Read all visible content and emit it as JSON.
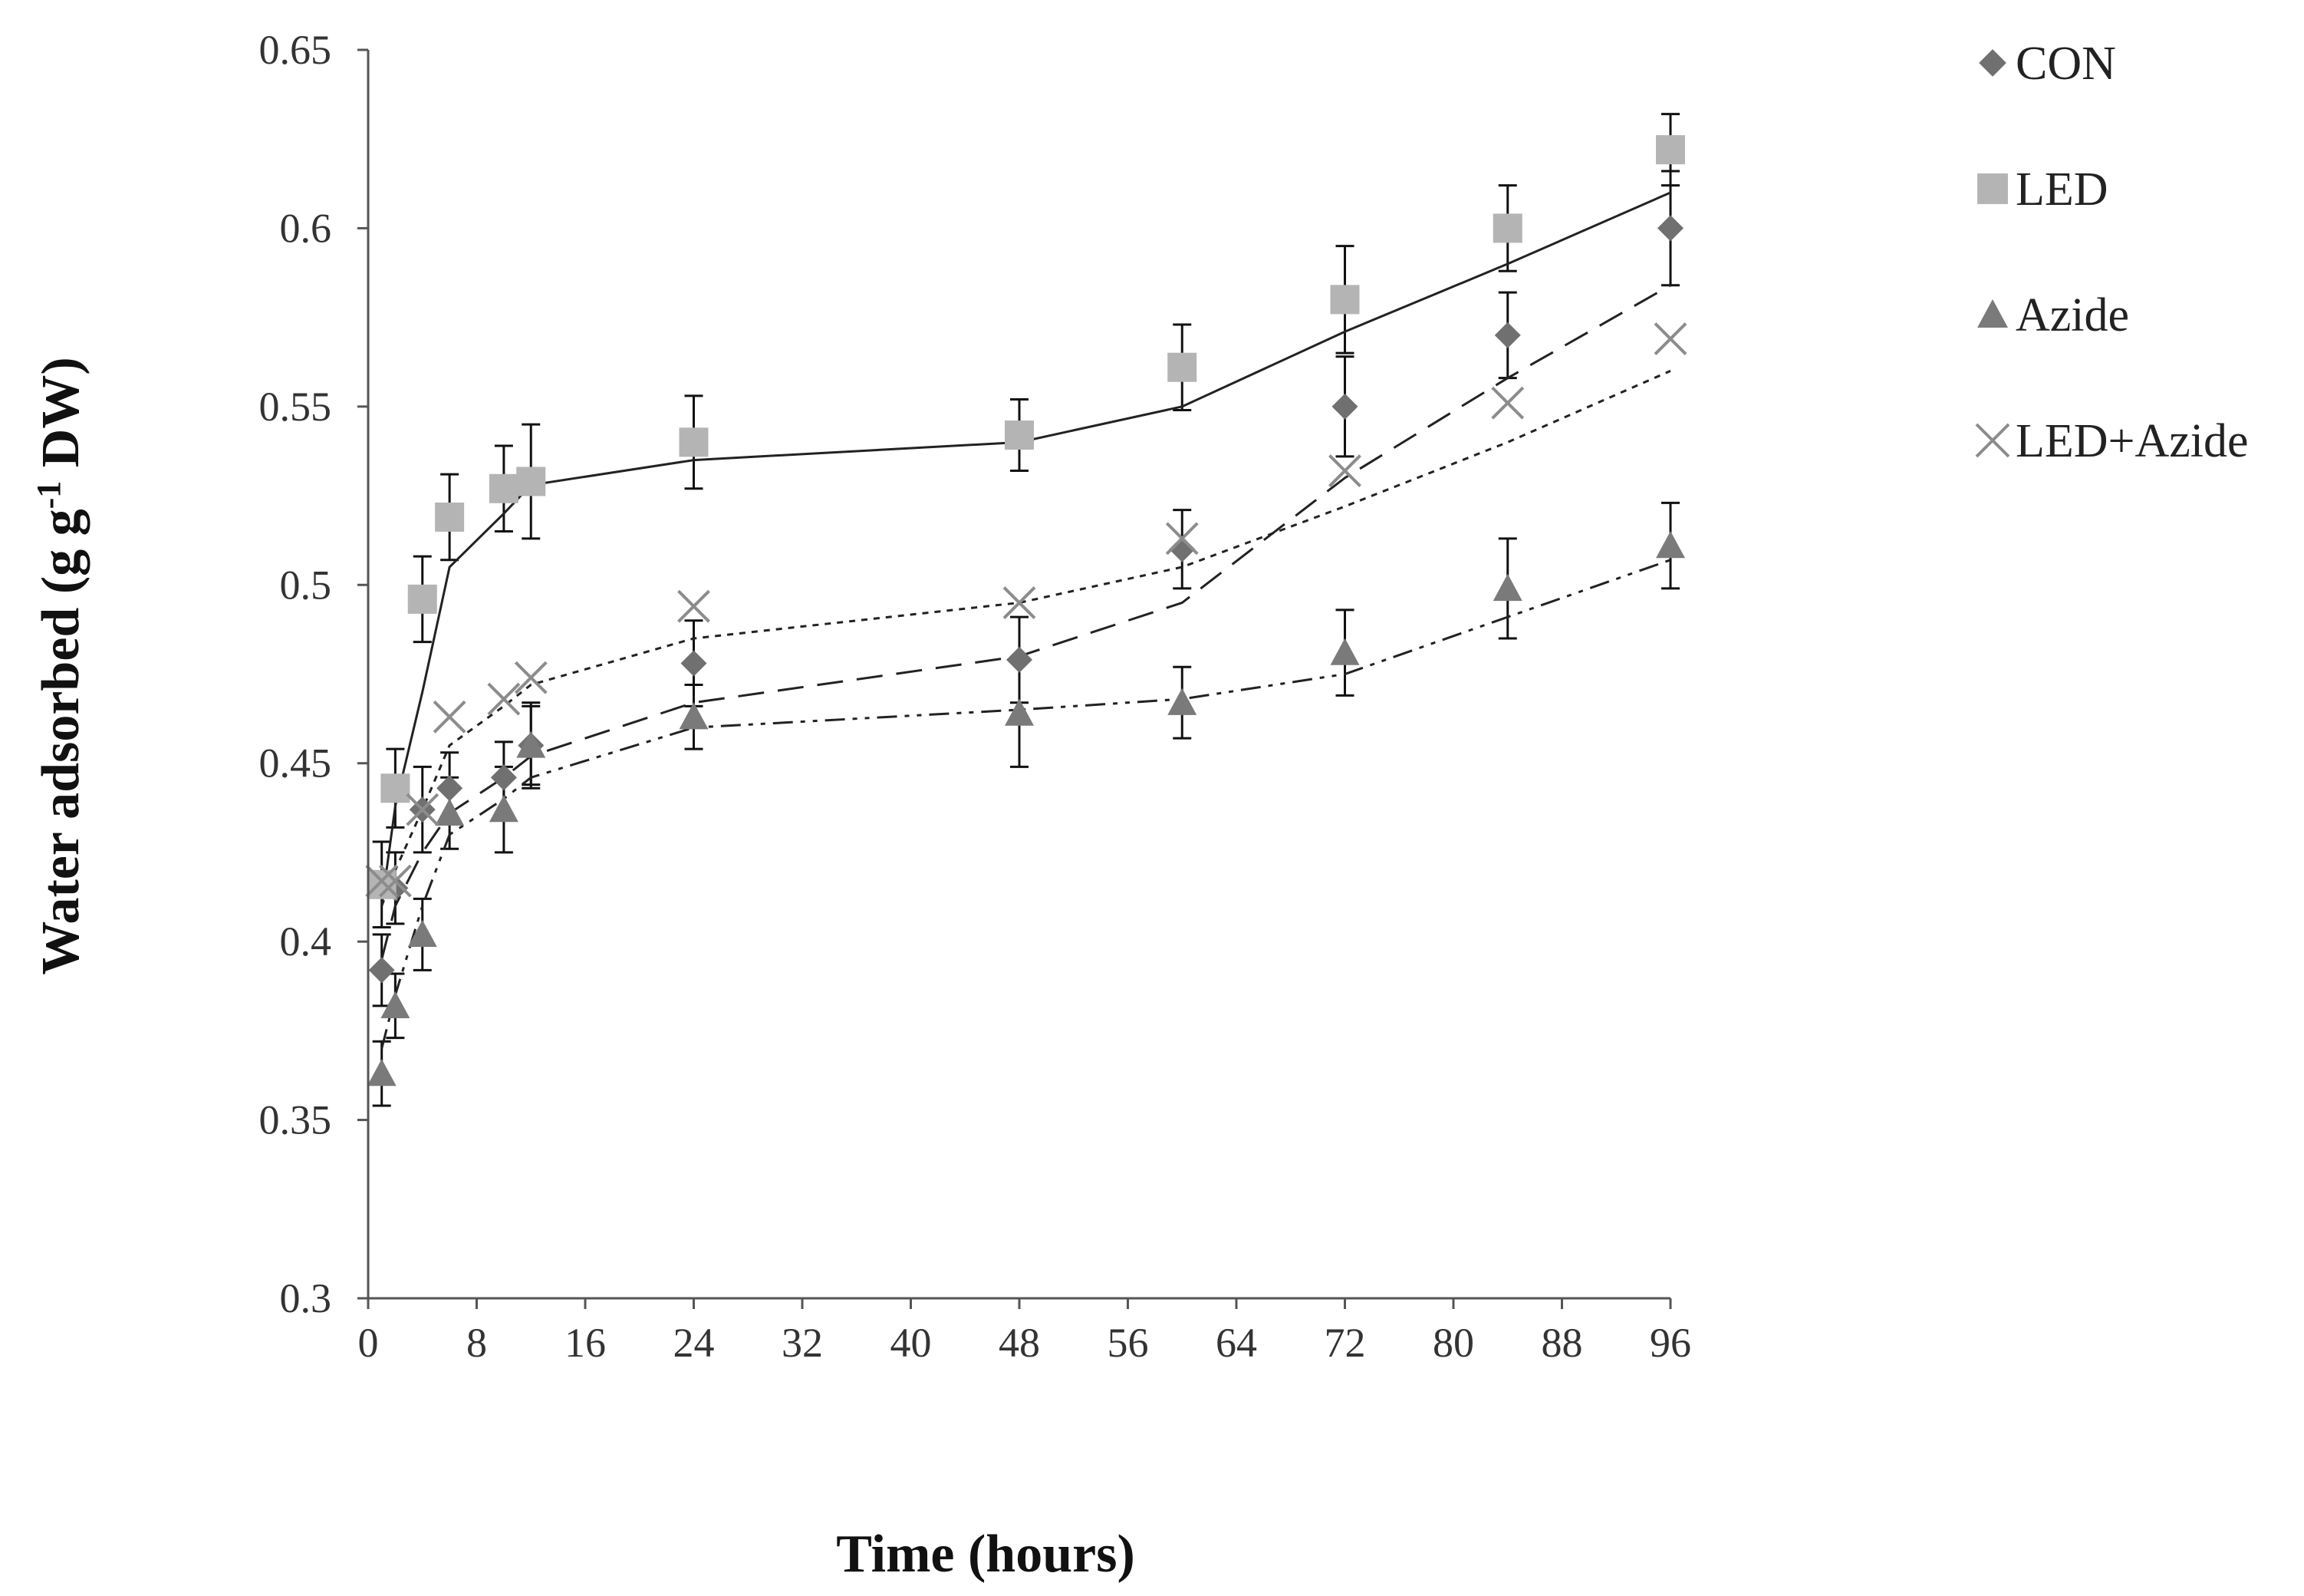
{
  "chart_data": {
    "type": "scatter",
    "title": "",
    "xlabel": "Time (hours)",
    "ylabel_main": "Water adsorbed (g g",
    "ylabel_sup": "-1",
    "ylabel_end": " DW)",
    "xlim": [
      0,
      96
    ],
    "ylim": [
      0.3,
      0.65
    ],
    "x_ticks": [
      0,
      8,
      16,
      24,
      32,
      40,
      48,
      56,
      64,
      72,
      80,
      88,
      96
    ],
    "x_tick_labels": [
      "0",
      "8",
      "16",
      "24",
      "32",
      "40",
      "48",
      "56",
      "64",
      "72",
      "80",
      "88",
      "96"
    ],
    "y_ticks": [
      0.3,
      0.35,
      0.4,
      0.45,
      0.5,
      0.55,
      0.6,
      0.65
    ],
    "y_tick_labels": [
      "0.3",
      "0.35",
      "0.4",
      "0.45",
      "0.5",
      "0.55",
      "0.6",
      "0.65"
    ],
    "grid": false,
    "legend_position": "right",
    "series": [
      {
        "name": "CON",
        "marker": "diamond",
        "color": "#707070",
        "line_style": "long-dash",
        "x": [
          1,
          2,
          4,
          6,
          10,
          12,
          24,
          48,
          60,
          72,
          84,
          96
        ],
        "y": [
          0.392,
          0.415,
          0.437,
          0.443,
          0.446,
          0.455,
          0.478,
          0.479,
          0.51,
          0.55,
          0.57,
          0.6
        ],
        "err": [
          0.01,
          0.01,
          0.012,
          0.01,
          0.01,
          0.012,
          0.012,
          0.012,
          0.011,
          0.014,
          0.012,
          0.016
        ]
      },
      {
        "name": "LED",
        "marker": "square",
        "color": "#b4b4b4",
        "line_style": "solid",
        "x": [
          1,
          2,
          4,
          6,
          10,
          12,
          24,
          48,
          60,
          72,
          84,
          96
        ],
        "y": [
          0.416,
          0.443,
          0.496,
          0.519,
          0.527,
          0.529,
          0.54,
          0.542,
          0.561,
          0.58,
          0.6,
          0.622
        ],
        "err": [
          0.012,
          0.011,
          0.012,
          0.012,
          0.012,
          0.016,
          0.013,
          0.01,
          0.012,
          0.015,
          0.012,
          0.01
        ]
      },
      {
        "name": "Azide",
        "marker": "triangle",
        "color": "#7a7a7a",
        "line_style": "dash-dot-dot",
        "x": [
          1,
          2,
          4,
          6,
          10,
          12,
          24,
          48,
          60,
          72,
          84,
          96
        ],
        "y": [
          0.363,
          0.382,
          0.402,
          0.436,
          0.437,
          0.455,
          0.463,
          0.464,
          0.467,
          0.481,
          0.499,
          0.511
        ],
        "err": [
          0.009,
          0.009,
          0.01,
          0.01,
          0.012,
          0.011,
          0.009,
          0.015,
          0.01,
          0.012,
          0.014,
          0.012
        ]
      },
      {
        "name": "LED+Azide",
        "marker": "x",
        "color": "#8c8c8c",
        "line_style": "dotted",
        "x": [
          1,
          2,
          4,
          6,
          10,
          12,
          24,
          48,
          60,
          72,
          84,
          96
        ],
        "y": [
          0.417,
          0.417,
          0.437,
          0.463,
          0.468,
          0.474,
          0.494,
          0.495,
          0.513,
          0.532,
          0.551,
          0.569
        ],
        "err": [
          0,
          0,
          0,
          0,
          0,
          0,
          0,
          0,
          0,
          0,
          0,
          0
        ]
      }
    ],
    "trendlines": [
      {
        "series": "CON",
        "line_style": "long-dash",
        "x": [
          1,
          2,
          4,
          6,
          10,
          12,
          24,
          48,
          60,
          72,
          84,
          96
        ],
        "y": [
          0.395,
          0.41,
          0.425,
          0.436,
          0.446,
          0.452,
          0.467,
          0.48,
          0.495,
          0.53,
          0.558,
          0.584
        ]
      },
      {
        "series": "LED",
        "line_style": "solid",
        "x": [
          1,
          2,
          4,
          6,
          10,
          12,
          24,
          48,
          60,
          72,
          84,
          96
        ],
        "y": [
          0.41,
          0.438,
          0.47,
          0.505,
          0.52,
          0.528,
          0.535,
          0.54,
          0.55,
          0.571,
          0.59,
          0.61
        ]
      },
      {
        "series": "Azide",
        "line_style": "dash-dot-dot",
        "x": [
          1,
          2,
          4,
          6,
          10,
          12,
          24,
          48,
          60,
          72,
          84,
          96
        ],
        "y": [
          0.37,
          0.385,
          0.41,
          0.43,
          0.44,
          0.446,
          0.46,
          0.465,
          0.468,
          0.475,
          0.491,
          0.507
        ]
      },
      {
        "series": "LED+Azide",
        "line_style": "dotted",
        "x": [
          1,
          2,
          4,
          6,
          10,
          12,
          24,
          48,
          60,
          72,
          84,
          96
        ],
        "y": [
          0.41,
          0.42,
          0.437,
          0.455,
          0.466,
          0.472,
          0.485,
          0.495,
          0.505,
          0.522,
          0.54,
          0.56
        ]
      }
    ]
  }
}
